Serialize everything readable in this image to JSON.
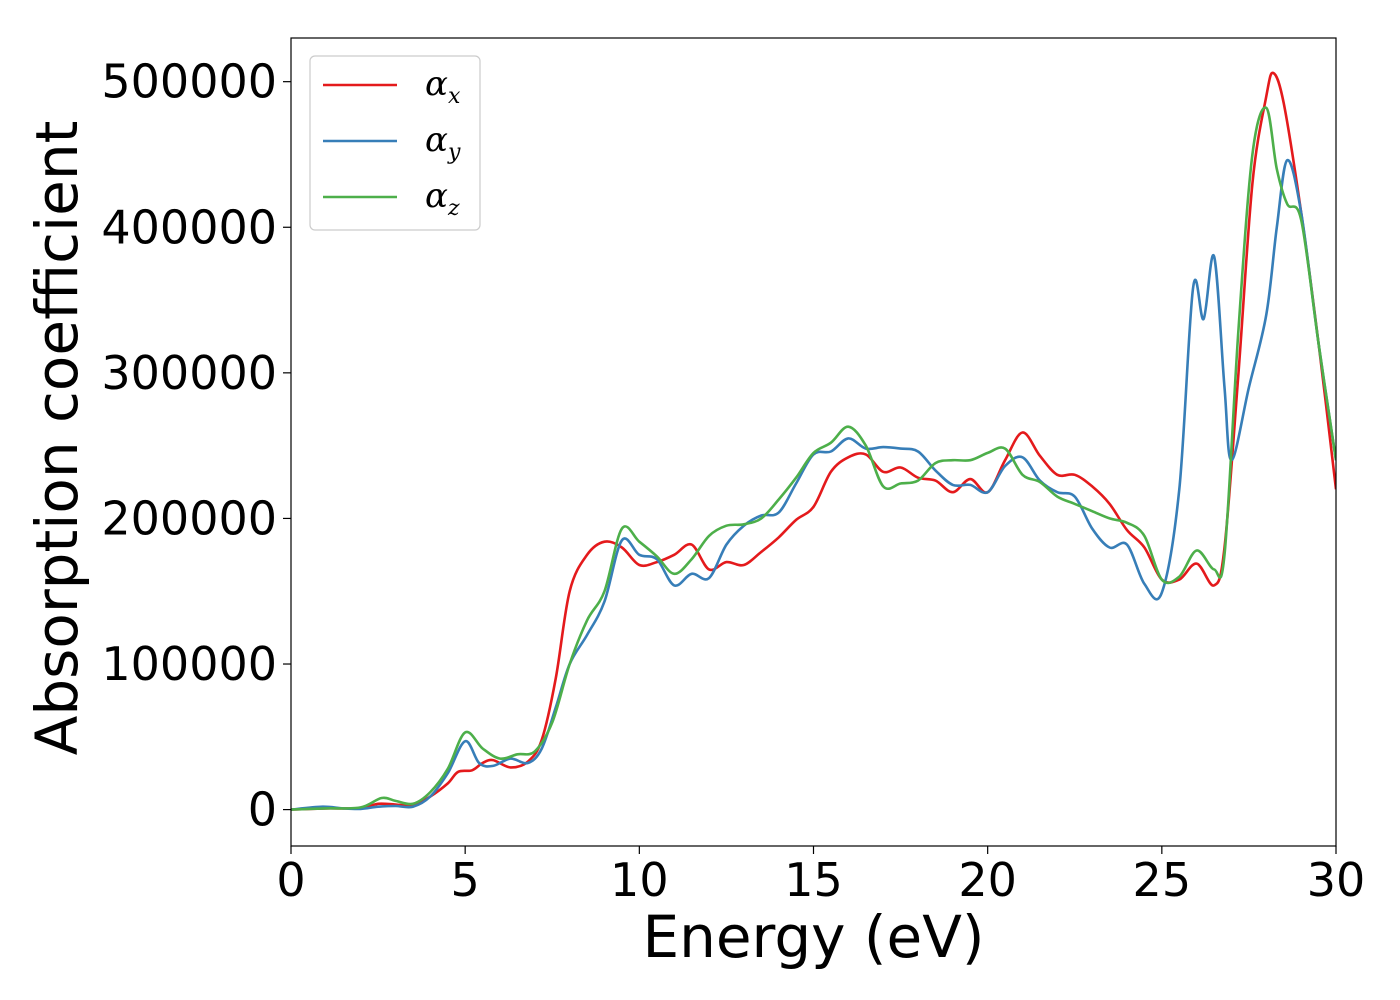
{
  "chart_data": {
    "type": "line",
    "title": "",
    "xlabel": "Energy (eV)",
    "ylabel": "Absorption coefficient",
    "xlim": [
      0,
      30
    ],
    "ylim": [
      -25000,
      530000
    ],
    "xticks": [
      0,
      5,
      10,
      15,
      20,
      25,
      30
    ],
    "yticks": [
      0,
      100000,
      200000,
      300000,
      400000,
      500000
    ],
    "legend_position": "top-left",
    "grid": false,
    "series": [
      {
        "name": "α_x",
        "label_base": "α",
        "label_sub": "x",
        "color": "#e41a1c",
        "points": [
          [
            0,
            0
          ],
          [
            1,
            800
          ],
          [
            2,
            1000
          ],
          [
            2.5,
            4000
          ],
          [
            3,
            3500
          ],
          [
            3.5,
            3000
          ],
          [
            4,
            9000
          ],
          [
            4.5,
            18000
          ],
          [
            4.8,
            26000
          ],
          [
            5.2,
            27000
          ],
          [
            5.5,
            32000
          ],
          [
            5.8,
            34000
          ],
          [
            6.3,
            29000
          ],
          [
            6.8,
            33000
          ],
          [
            7.2,
            48000
          ],
          [
            7.6,
            90000
          ],
          [
            8,
            150000
          ],
          [
            8.5,
            175000
          ],
          [
            9,
            184000
          ],
          [
            9.5,
            180000
          ],
          [
            10,
            168000
          ],
          [
            10.5,
            170000
          ],
          [
            11,
            175000
          ],
          [
            11.5,
            182000
          ],
          [
            12,
            165000
          ],
          [
            12.5,
            170000
          ],
          [
            13,
            168000
          ],
          [
            13.5,
            177000
          ],
          [
            14,
            187000
          ],
          [
            14.5,
            199000
          ],
          [
            15,
            208000
          ],
          [
            15.5,
            232000
          ],
          [
            16,
            242000
          ],
          [
            16.5,
            244000
          ],
          [
            17,
            232000
          ],
          [
            17.5,
            235000
          ],
          [
            18,
            228000
          ],
          [
            18.5,
            226000
          ],
          [
            19,
            218000
          ],
          [
            19.5,
            227000
          ],
          [
            20,
            218000
          ],
          [
            20.5,
            240000
          ],
          [
            21,
            259000
          ],
          [
            21.5,
            243000
          ],
          [
            22,
            230000
          ],
          [
            22.5,
            230000
          ],
          [
            23,
            222000
          ],
          [
            23.5,
            210000
          ],
          [
            24,
            192000
          ],
          [
            24.5,
            180000
          ],
          [
            25,
            158000
          ],
          [
            25.5,
            158000
          ],
          [
            26,
            169000
          ],
          [
            26.5,
            154000
          ],
          [
            26.8,
            180000
          ],
          [
            27.2,
            300000
          ],
          [
            27.6,
            430000
          ],
          [
            28,
            490000
          ],
          [
            28.2,
            506000
          ],
          [
            28.5,
            485000
          ],
          [
            29,
            410000
          ],
          [
            29.5,
            320000
          ],
          [
            30,
            220000
          ]
        ]
      },
      {
        "name": "α_y",
        "label_base": "α",
        "label_sub": "y",
        "color": "#377eb8",
        "points": [
          [
            0,
            0
          ],
          [
            0.9,
            2000
          ],
          [
            1.5,
            800
          ],
          [
            2,
            500
          ],
          [
            2.5,
            2000
          ],
          [
            3,
            2500
          ],
          [
            3.5,
            2000
          ],
          [
            4,
            9000
          ],
          [
            4.5,
            25000
          ],
          [
            5,
            47000
          ],
          [
            5.4,
            32000
          ],
          [
            5.8,
            30000
          ],
          [
            6.3,
            35000
          ],
          [
            6.8,
            32000
          ],
          [
            7.2,
            42000
          ],
          [
            7.6,
            70000
          ],
          [
            8,
            100000
          ],
          [
            8.5,
            120000
          ],
          [
            9,
            143000
          ],
          [
            9.5,
            185000
          ],
          [
            10,
            175000
          ],
          [
            10.5,
            172000
          ],
          [
            11,
            154000
          ],
          [
            11.5,
            162000
          ],
          [
            12,
            159000
          ],
          [
            12.5,
            182000
          ],
          [
            13,
            195000
          ],
          [
            13.5,
            202000
          ],
          [
            14,
            204000
          ],
          [
            14.5,
            224000
          ],
          [
            15,
            244000
          ],
          [
            15.5,
            246000
          ],
          [
            16,
            255000
          ],
          [
            16.5,
            248000
          ],
          [
            17,
            249000
          ],
          [
            17.5,
            248000
          ],
          [
            18,
            246000
          ],
          [
            18.5,
            233000
          ],
          [
            19,
            223000
          ],
          [
            19.5,
            223000
          ],
          [
            20,
            218000
          ],
          [
            20.5,
            236000
          ],
          [
            21,
            242000
          ],
          [
            21.5,
            226000
          ],
          [
            22,
            218000
          ],
          [
            22.5,
            215000
          ],
          [
            23,
            193000
          ],
          [
            23.5,
            180000
          ],
          [
            24,
            182000
          ],
          [
            24.5,
            155000
          ],
          [
            25,
            149000
          ],
          [
            25.5,
            220000
          ],
          [
            25.9,
            359000
          ],
          [
            26.2,
            337000
          ],
          [
            26.5,
            380000
          ],
          [
            26.8,
            290000
          ],
          [
            27,
            240000
          ],
          [
            27.5,
            290000
          ],
          [
            28,
            340000
          ],
          [
            28.3,
            400000
          ],
          [
            28.6,
            446000
          ],
          [
            29,
            410000
          ],
          [
            29.5,
            320000
          ],
          [
            30,
            240000
          ]
        ]
      },
      {
        "name": "α_z",
        "label_base": "α",
        "label_sub": "z",
        "color": "#4daf4a",
        "points": [
          [
            0,
            0
          ],
          [
            1,
            800
          ],
          [
            2,
            1500
          ],
          [
            2.6,
            8000
          ],
          [
            3,
            6000
          ],
          [
            3.5,
            4000
          ],
          [
            4,
            12000
          ],
          [
            4.5,
            28000
          ],
          [
            5,
            53000
          ],
          [
            5.5,
            42000
          ],
          [
            6,
            35000
          ],
          [
            6.5,
            38000
          ],
          [
            7,
            40000
          ],
          [
            7.5,
            60000
          ],
          [
            8,
            100000
          ],
          [
            8.5,
            130000
          ],
          [
            9,
            150000
          ],
          [
            9.5,
            193000
          ],
          [
            10,
            184000
          ],
          [
            10.5,
            174000
          ],
          [
            11,
            162000
          ],
          [
            11.5,
            172000
          ],
          [
            12,
            188000
          ],
          [
            12.5,
            195000
          ],
          [
            13,
            196000
          ],
          [
            13.5,
            200000
          ],
          [
            14,
            213000
          ],
          [
            14.5,
            228000
          ],
          [
            15,
            245000
          ],
          [
            15.5,
            252000
          ],
          [
            16,
            263000
          ],
          [
            16.5,
            250000
          ],
          [
            17,
            222000
          ],
          [
            17.5,
            224000
          ],
          [
            18,
            226000
          ],
          [
            18.5,
            238000
          ],
          [
            19,
            240000
          ],
          [
            19.5,
            240000
          ],
          [
            20,
            245000
          ],
          [
            20.5,
            248000
          ],
          [
            21,
            230000
          ],
          [
            21.5,
            225000
          ],
          [
            22,
            215000
          ],
          [
            22.5,
            210000
          ],
          [
            23,
            205000
          ],
          [
            23.5,
            200000
          ],
          [
            24,
            197000
          ],
          [
            24.5,
            188000
          ],
          [
            25,
            158000
          ],
          [
            25.5,
            160000
          ],
          [
            26,
            178000
          ],
          [
            26.5,
            165000
          ],
          [
            26.8,
            175000
          ],
          [
            27.2,
            330000
          ],
          [
            27.6,
            450000
          ],
          [
            28,
            482000
          ],
          [
            28.3,
            440000
          ],
          [
            28.6,
            416000
          ],
          [
            29,
            405000
          ],
          [
            29.5,
            320000
          ],
          [
            30,
            240000
          ]
        ]
      }
    ]
  }
}
